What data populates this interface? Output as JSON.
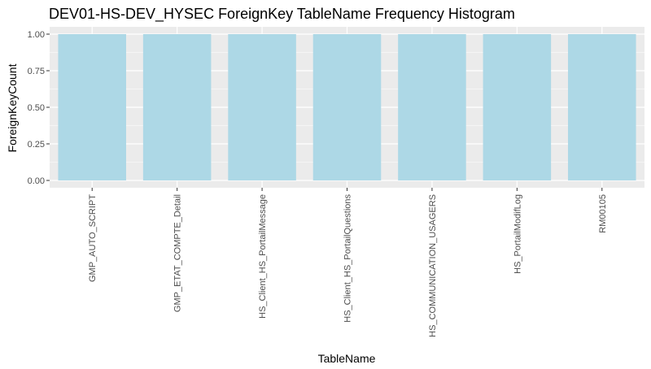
{
  "chart_data": {
    "type": "bar",
    "title": "DEV01-HS-DEV_HYSEC ForeignKey TableName Frequency Histogram",
    "xlabel": "TableName",
    "ylabel": "ForeignKeyCount",
    "categories": [
      "GMP_AUTO_SCRIPT",
      "GMP_ETAT_COMPTE_Detail",
      "HS_Client_HS_PortailMessage",
      "HS_Client_HS_PortailQuestions",
      "HS_COMMUNICATION_USAGERS",
      "HS_PortailModifLog",
      "RM00105"
    ],
    "values": [
      1,
      1,
      1,
      1,
      1,
      1,
      1
    ],
    "ylim": [
      -0.05,
      1.05
    ],
    "yticks": [
      0.0,
      0.25,
      0.5,
      0.75,
      1.0
    ],
    "ytick_labels": [
      "0.00",
      "0.25",
      "0.50",
      "0.75",
      "1.00"
    ],
    "grid": true,
    "bar_color": "#add8e6",
    "panel_background": "#ebebeb",
    "grid_color": "#ffffff"
  }
}
